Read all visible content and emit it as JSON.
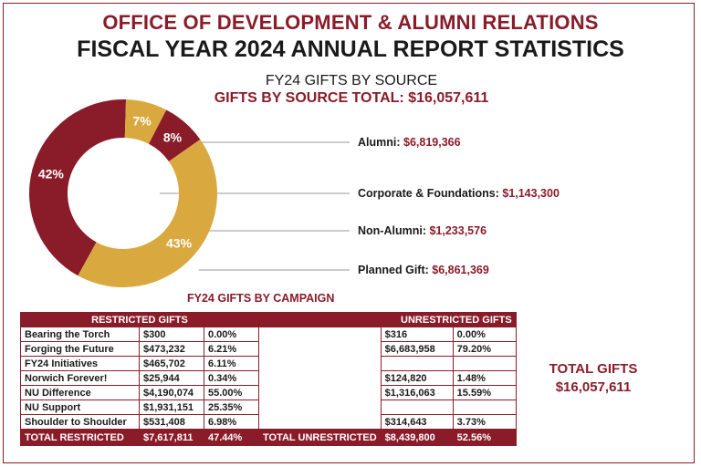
{
  "header": {
    "line1": "OFFICE OF DEVELOPMENT & ALUMNI RELATIONS",
    "line2": "FISCAL YEAR 2024 ANNUAL REPORT STATISTICS"
  },
  "colors": {
    "crimson": "#8a1c2a",
    "gold": "#d9a940",
    "text": "#1a1a1a"
  },
  "chart_data": {
    "type": "pie",
    "style": "donut",
    "title": "FY24 GIFTS BY SOURCE",
    "subtitle": "GIFTS BY SOURCE TOTAL:  $16,057,611",
    "slices": [
      {
        "label": "Alumni:",
        "value": 6819366,
        "value_text": "$6,819,366",
        "pct_text": "42%",
        "color": "#8a1c2a"
      },
      {
        "label": "Corporate & Foundations:",
        "value": 1143300,
        "value_text": "$1,143,300",
        "pct_text": "7%",
        "color": "#d9a940"
      },
      {
        "label": "Non-Alumni:",
        "value": 1233576,
        "value_text": "$1,233,576",
        "pct_text": "8%",
        "color": "#8a1c2a"
      },
      {
        "label": "Planned Gift:",
        "value": 6861369,
        "value_text": "$6,861,369",
        "pct_text": "43%",
        "color": "#d9a940"
      }
    ]
  },
  "campaign": {
    "title": "FY24 GIFTS BY CAMPAIGN",
    "restricted_header": "RESTRICTED GIFTS",
    "unrestricted_header": "UNRESTRICTED GIFTS",
    "rows": [
      {
        "name": "Bearing the Torch",
        "r_amt": "$300",
        "r_pct": "0.00%",
        "u_amt": "$316",
        "u_pct": "0.00%"
      },
      {
        "name": "Forging the Future",
        "r_amt": "$473,232",
        "r_pct": "6.21%",
        "u_amt": "$6,683,958",
        "u_pct": "79.20%"
      },
      {
        "name": "FY24 Initiatives",
        "r_amt": "$465,702",
        "r_pct": "6.11%",
        "u_amt": "",
        "u_pct": ""
      },
      {
        "name": "Norwich Forever!",
        "r_amt": "$25,944",
        "r_pct": "0.34%",
        "u_amt": "$124,820",
        "u_pct": "1.48%"
      },
      {
        "name": "NU Difference",
        "r_amt": "$4,190,074",
        "r_pct": "55.00%",
        "u_amt": "$1,316,063",
        "u_pct": "15.59%"
      },
      {
        "name": "NU Support",
        "r_amt": "$1,931,151",
        "r_pct": "25.35%",
        "u_amt": "",
        "u_pct": ""
      },
      {
        "name": "Shoulder to Shoulder",
        "r_amt": "$531,408",
        "r_pct": "6.98%",
        "u_amt": "$314,643",
        "u_pct": "3.73%"
      }
    ],
    "totals": {
      "r_label": "TOTAL RESTRICTED",
      "r_amt": "$7,617,811",
      "r_pct": "47.44%",
      "u_label": "TOTAL UNRESTRICTED",
      "u_amt": "$8,439,800",
      "u_pct": "52.56%"
    }
  },
  "total_gifts": {
    "label": "TOTAL GIFTS",
    "value": "$16,057,611"
  }
}
